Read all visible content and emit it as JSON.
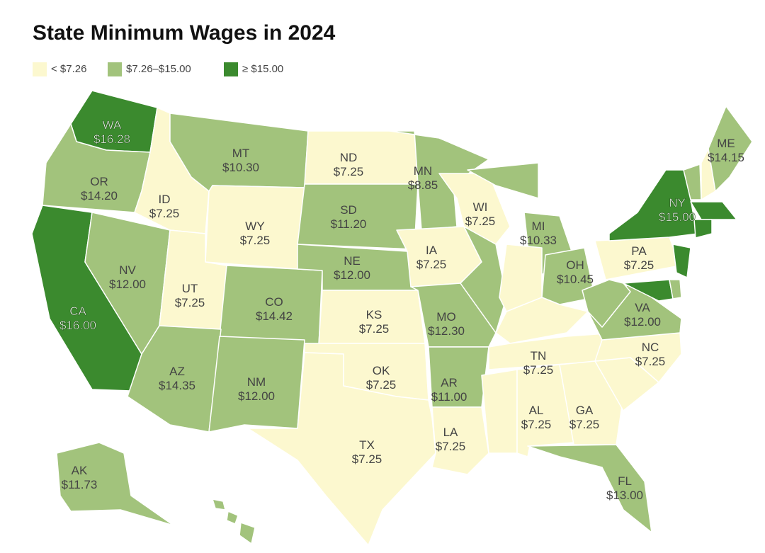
{
  "title": "State Minimum Wages in 2024",
  "legend": [
    {
      "label": "< $7.26",
      "color": "#fcf8cf"
    },
    {
      "label": "$7.26–$15.00",
      "color": "#a2c37c"
    },
    {
      "label": "≥ $15.00",
      "color": "#3b8a2e"
    }
  ],
  "labels": [
    {
      "state": "WA",
      "wage": "$16.28"
    },
    {
      "state": "OR",
      "wage": "$14.20"
    },
    {
      "state": "CA",
      "wage": "$16.00"
    },
    {
      "state": "NV",
      "wage": "$12.00"
    },
    {
      "state": "ID",
      "wage": "$7.25"
    },
    {
      "state": "MT",
      "wage": "$10.30"
    },
    {
      "state": "WY",
      "wage": "$7.25"
    },
    {
      "state": "UT",
      "wage": "$7.25"
    },
    {
      "state": "CO",
      "wage": "$14.42"
    },
    {
      "state": "AZ",
      "wage": "$14.35"
    },
    {
      "state": "NM",
      "wage": "$12.00"
    },
    {
      "state": "ND",
      "wage": "$7.25"
    },
    {
      "state": "SD",
      "wage": "$11.20"
    },
    {
      "state": "NE",
      "wage": "$12.00"
    },
    {
      "state": "KS",
      "wage": "$7.25"
    },
    {
      "state": "OK",
      "wage": "$7.25"
    },
    {
      "state": "TX",
      "wage": "$7.25"
    },
    {
      "state": "MN",
      "wage": "$8.85"
    },
    {
      "state": "IA",
      "wage": "$7.25"
    },
    {
      "state": "MO",
      "wage": "$12.30"
    },
    {
      "state": "AR",
      "wage": "$11.00"
    },
    {
      "state": "LA",
      "wage": "$7.25"
    },
    {
      "state": "WI",
      "wage": "$7.25"
    },
    {
      "state": "MI",
      "wage": "$10.33"
    },
    {
      "state": "OH",
      "wage": "$10.45"
    },
    {
      "state": "TN",
      "wage": "$7.25"
    },
    {
      "state": "AL",
      "wage": "$7.25"
    },
    {
      "state": "GA",
      "wage": "$7.25"
    },
    {
      "state": "FL",
      "wage": "$13.00"
    },
    {
      "state": "NC",
      "wage": "$7.25"
    },
    {
      "state": "VA",
      "wage": "$12.00"
    },
    {
      "state": "PA",
      "wage": "$7.25"
    },
    {
      "state": "NY",
      "wage": "$15.00"
    },
    {
      "state": "ME",
      "wage": "$14.15"
    },
    {
      "state": "AK",
      "wage": "$11.73"
    }
  ]
}
